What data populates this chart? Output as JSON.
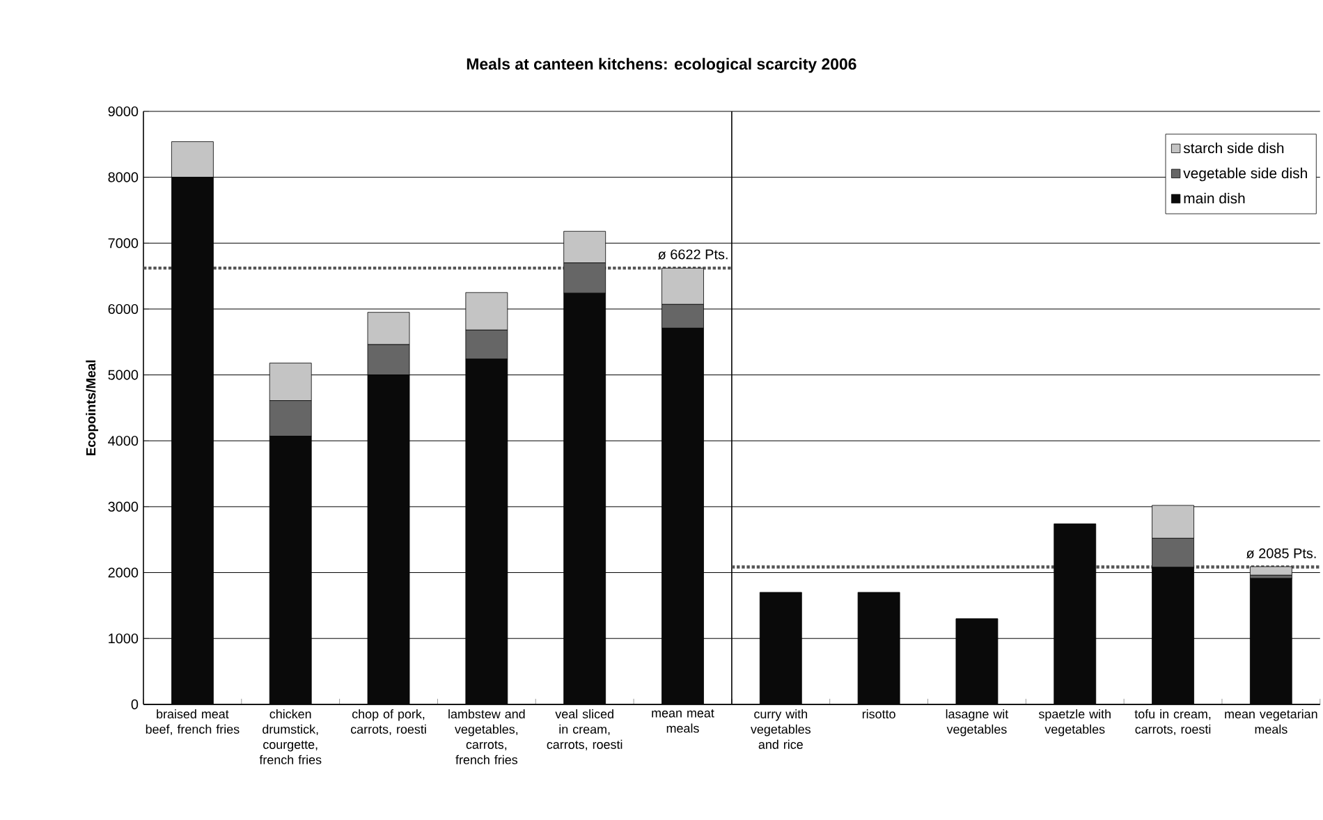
{
  "chart_data": [
    {
      "type": "bar",
      "title": "Meals at canteen kitchens: ecological scarcity 2006",
      "ylabel": "Ecopoints/Meal",
      "categories": [
        "braised meat beef, french fries",
        "chicken drumstick, courgette, french fries",
        "chop of pork, carrots, roesti",
        "lambstew and vegetables, carrots, french fries",
        "veal sliced in cream, carrots, roesti",
        "mean meat meals"
      ],
      "stacked": true,
      "series": [
        {
          "color": "#0a0a0a",
          "values": [
            8000,
            4070,
            5000,
            5240,
            6240,
            5710
          ]
        },
        {
          "color": "#666666",
          "values": [
            0,
            540,
            460,
            440,
            460,
            360
          ]
        },
        {
          "color": "#c4c4c4",
          "values": [
            540,
            570,
            490,
            570,
            480,
            550
          ]
        }
      ],
      "ylim": [
        0,
        9000
      ],
      "yticks": [
        0,
        1000,
        2000,
        3000,
        4000,
        5000,
        6000,
        7000,
        8000,
        9000
      ],
      "grid": "y",
      "ref_lines": [
        {
          "axis": "y",
          "value": 6622,
          "label": "ø 6622 Pts.",
          "color": "#555555",
          "line_style": "dotted"
        }
      ]
    },
    {
      "type": "bar",
      "categories": [
        "curry with vegetables and rice",
        "risotto",
        "lasagne wit vegetables",
        "spaetzle with vegetables",
        "tofu in cream, carrots, roesti",
        "mean vegetarian meals"
      ],
      "stacked": true,
      "series": [
        {
          "name": "main dish",
          "color": "#0a0a0a",
          "values": [
            1700,
            1700,
            1300,
            2740,
            2080,
            1910
          ]
        },
        {
          "name": "vegetable side dish",
          "color": "#666666",
          "values": [
            0,
            0,
            0,
            0,
            440,
            50
          ]
        },
        {
          "name": "starch side dish",
          "color": "#c4c4c4",
          "values": [
            0,
            0,
            0,
            0,
            500,
            130
          ]
        }
      ],
      "ylim": [
        0,
        9000
      ],
      "yticks": [
        0,
        1000,
        2000,
        3000,
        4000,
        5000,
        6000,
        7000,
        8000,
        9000
      ],
      "tick_labels": "x",
      "grid": "y",
      "legend": "top right",
      "ref_lines": [
        {
          "axis": "y",
          "value": 2085,
          "label": "ø 2085 Pts.",
          "color": "#555555",
          "line_style": "dotted"
        }
      ]
    }
  ]
}
